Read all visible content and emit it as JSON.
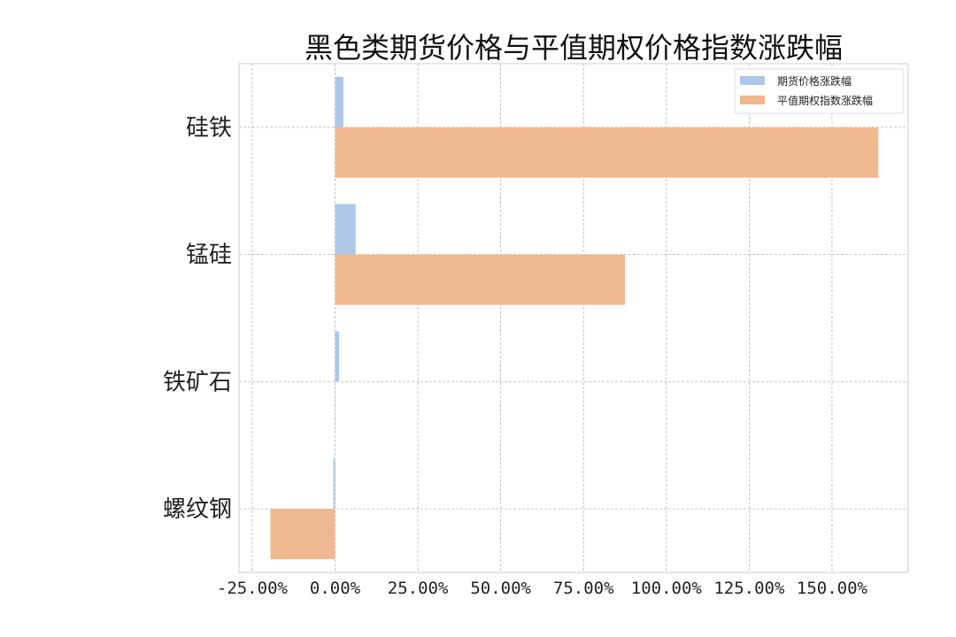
{
  "chart_data": {
    "type": "bar",
    "orientation": "horizontal",
    "title": "黑色类期货价格与平值期权价格指数涨跌幅",
    "categories": [
      "硅铁",
      "锰硅",
      "铁矿石",
      "螺纹钢"
    ],
    "series": [
      {
        "name": "期货价格涨跌幅",
        "values": [
          2.5,
          6.2,
          1.2,
          -0.5
        ],
        "color": "#aec7e8"
      },
      {
        "name": "平值期权指数涨跌幅",
        "values": [
          164.0,
          87.5,
          0.0,
          -19.5
        ],
        "color": "#f0b891"
      }
    ],
    "xlim": [
      -29,
      173
    ],
    "xticks": [
      -25,
      0,
      25,
      50,
      75,
      100,
      125,
      150
    ],
    "xtick_labels": [
      "-25.00%",
      "0.00%",
      "25.00%",
      "50.00%",
      "75.00%",
      "100.00%",
      "125.00%",
      "150.00%"
    ],
    "grid": true,
    "legend_position": "top-right"
  }
}
